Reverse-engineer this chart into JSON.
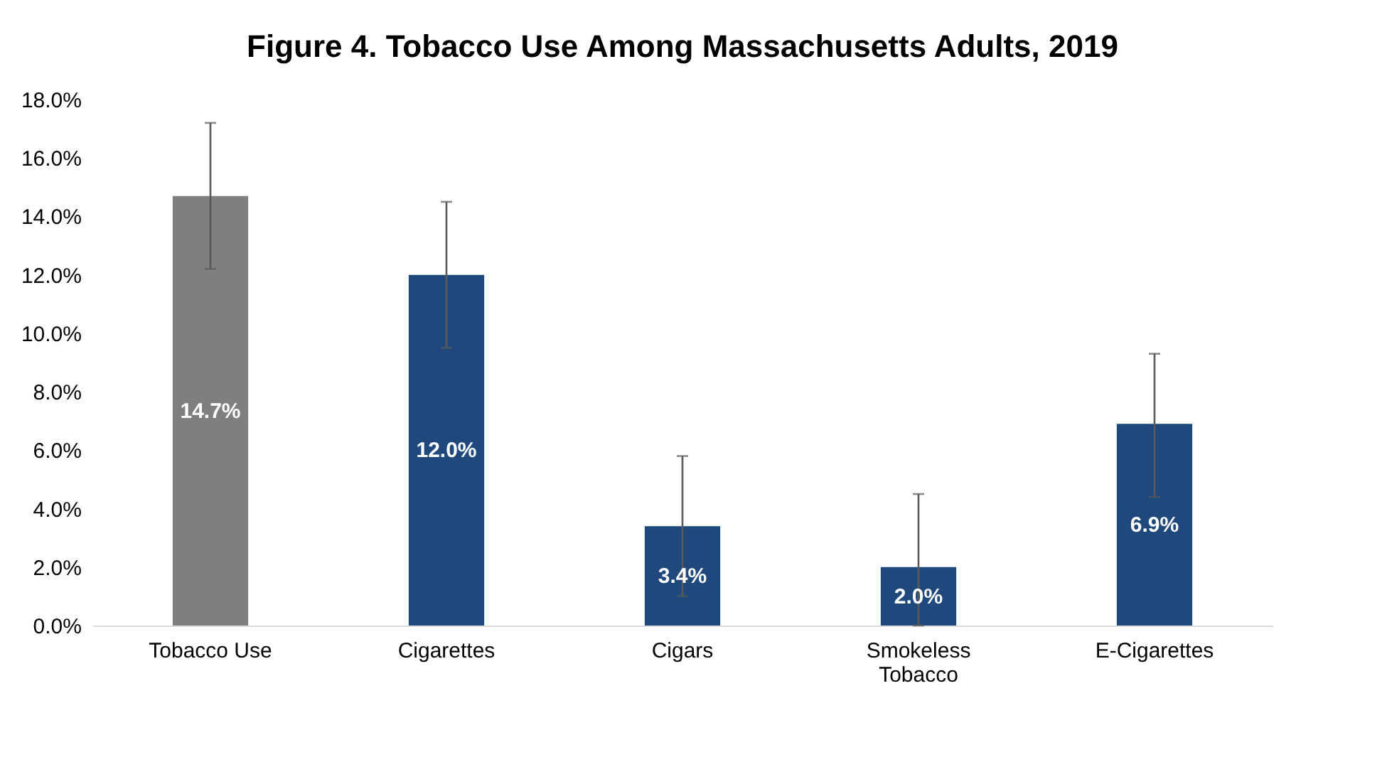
{
  "chart_data": {
    "type": "bar",
    "title": "Figure 4. Tobacco Use Among Massachusetts Adults, 2019",
    "categories": [
      "Tobacco Use",
      "Cigarettes",
      "Cigars",
      "Smokeless Tobacco",
      "E-Cigarettes"
    ],
    "values": [
      14.7,
      12.0,
      3.4,
      2.0,
      6.9
    ],
    "colors": [
      "#7f7f7f",
      "#1f497d",
      "#1f497d",
      "#1f497d",
      "#1f497d"
    ],
    "errors": [
      [
        12.2,
        17.2
      ],
      [
        9.5,
        14.5
      ],
      [
        1.0,
        5.8
      ],
      [
        0.0,
        4.5
      ],
      [
        4.4,
        9.3
      ]
    ],
    "value_labels": [
      "14.7%",
      "12.0%",
      "3.4%",
      "2.0%",
      "6.9%"
    ],
    "ylim": [
      0,
      18
    ],
    "yticks": [
      {
        "value": 0,
        "label": "0.0%"
      },
      {
        "value": 2,
        "label": "2.0%"
      },
      {
        "value": 4,
        "label": "4.0%"
      },
      {
        "value": 6,
        "label": "6.0%"
      },
      {
        "value": 8,
        "label": "8.0%"
      },
      {
        "value": 10,
        "label": "10.0%"
      },
      {
        "value": 12,
        "label": "12.0%"
      },
      {
        "value": 14,
        "label": "14.0%"
      },
      {
        "value": 16,
        "label": "16.0%"
      },
      {
        "value": 18,
        "label": "18.0%"
      }
    ],
    "grid": false
  }
}
